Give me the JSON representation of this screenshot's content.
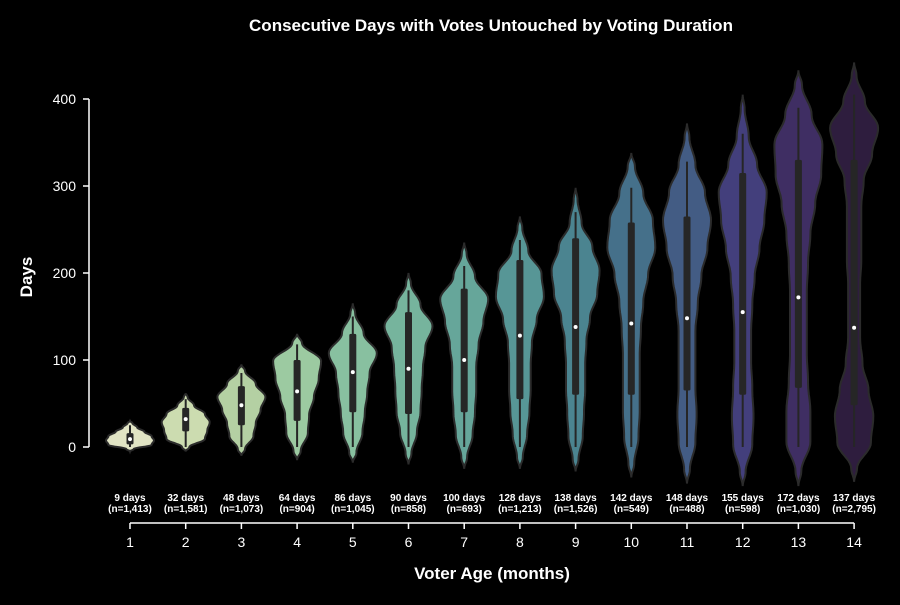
{
  "chart_data": {
    "type": "violin",
    "title": "Consecutive Days with Votes Untouched by Voting Duration",
    "xlabel": "Voter Age (months)",
    "ylabel": "Days",
    "ylim": [
      -45,
      445
    ],
    "yticks": [
      0,
      100,
      200,
      300,
      400
    ],
    "grid": false,
    "legend": "none",
    "categories": [
      "1",
      "2",
      "3",
      "4",
      "5",
      "6",
      "7",
      "8",
      "9",
      "10",
      "11",
      "12",
      "13",
      "14"
    ],
    "medians": [
      9,
      32,
      48,
      64,
      86,
      90,
      100,
      128,
      138,
      142,
      148,
      155,
      172,
      137
    ],
    "counts": [
      "1,413",
      "1,581",
      "1,073",
      "904",
      "1,045",
      "858",
      "693",
      "1,213",
      "1,526",
      "549",
      "488",
      "598",
      "1,030",
      "2,795"
    ],
    "annotations": [
      {
        "line1": "9 days",
        "line2": "(n=1,413)"
      },
      {
        "line1": "32 days",
        "line2": "(n=1,581)"
      },
      {
        "line1": "48 days",
        "line2": "(n=1,073)"
      },
      {
        "line1": "64 days",
        "line2": "(n=904)"
      },
      {
        "line1": "86 days",
        "line2": "(n=1,045)"
      },
      {
        "line1": "90 days",
        "line2": "(n=858)"
      },
      {
        "line1": "100 days",
        "line2": "(n=693)"
      },
      {
        "line1": "128 days",
        "line2": "(n=1,213)"
      },
      {
        "line1": "138 days",
        "line2": "(n=1,526)"
      },
      {
        "line1": "142 days",
        "line2": "(n=549)"
      },
      {
        "line1": "148 days",
        "line2": "(n=488)"
      },
      {
        "line1": "155 days",
        "line2": "(n=598)"
      },
      {
        "line1": "172 days",
        "line2": "(n=1,030)"
      },
      {
        "line1": "137 days",
        "line2": "(n=2,795)"
      }
    ],
    "box": {
      "q1": [
        3,
        18,
        25,
        30,
        40,
        38,
        40,
        55,
        60,
        60,
        65,
        60,
        68,
        48
      ],
      "q3": [
        16,
        45,
        70,
        100,
        130,
        155,
        182,
        215,
        240,
        258,
        265,
        315,
        330,
        330
      ],
      "whisker_low": [
        0,
        0,
        0,
        0,
        0,
        0,
        0,
        0,
        0,
        0,
        0,
        0,
        0,
        0
      ],
      "whisker_high": [
        25,
        55,
        85,
        118,
        150,
        180,
        208,
        238,
        270,
        298,
        328,
        360,
        390,
        405
      ]
    },
    "density_min": [
      -5,
      -5,
      -10,
      -15,
      -18,
      -20,
      -25,
      -25,
      -28,
      -35,
      -42,
      -45,
      -45,
      -40
    ],
    "density_max": [
      30,
      62,
      95,
      130,
      165,
      200,
      235,
      265,
      298,
      338,
      372,
      405,
      433,
      442
    ],
    "density_shape": [
      [
        0.15,
        0.9,
        1.0,
        0.9,
        0.6,
        0.3,
        0.1
      ],
      [
        0.15,
        0.8,
        0.9,
        1.0,
        0.8,
        0.35,
        0.08
      ],
      [
        0.15,
        0.5,
        0.6,
        0.8,
        1.0,
        0.6,
        0.15
      ],
      [
        0.15,
        0.45,
        0.5,
        0.7,
        0.9,
        1.0,
        0.2
      ],
      [
        0.15,
        0.4,
        0.5,
        0.6,
        0.7,
        1.0,
        0.45,
        0.1
      ],
      [
        0.12,
        0.35,
        0.5,
        0.55,
        0.6,
        0.7,
        1.0,
        0.5,
        0.1
      ],
      [
        0.12,
        0.35,
        0.45,
        0.5,
        0.5,
        0.6,
        0.8,
        1.0,
        0.45,
        0.1
      ],
      [
        0.12,
        0.3,
        0.4,
        0.45,
        0.45,
        0.5,
        0.7,
        1.0,
        0.9,
        0.35,
        0.1
      ],
      [
        0.12,
        0.3,
        0.35,
        0.4,
        0.4,
        0.45,
        0.6,
        0.9,
        1.0,
        0.7,
        0.25,
        0.08
      ],
      [
        0.12,
        0.3,
        0.35,
        0.35,
        0.35,
        0.4,
        0.5,
        0.7,
        1.0,
        0.9,
        0.5,
        0.15
      ],
      [
        0.12,
        0.35,
        0.4,
        0.35,
        0.35,
        0.35,
        0.45,
        0.6,
        0.85,
        1.0,
        0.75,
        0.35,
        0.1
      ],
      [
        0.12,
        0.4,
        0.45,
        0.4,
        0.35,
        0.35,
        0.4,
        0.5,
        0.7,
        0.9,
        1.0,
        0.6,
        0.25,
        0.08
      ],
      [
        0.12,
        0.5,
        0.5,
        0.4,
        0.35,
        0.35,
        0.35,
        0.4,
        0.5,
        0.7,
        0.95,
        1.0,
        0.55,
        0.15
      ],
      [
        0.12,
        0.7,
        0.8,
        0.6,
        0.35,
        0.25,
        0.25,
        0.25,
        0.3,
        0.3,
        0.3,
        0.4,
        0.75,
        1.0,
        0.45,
        0.1
      ]
    ],
    "colors": [
      "#e1e4c4",
      "#ccdcb0",
      "#b4d0a3",
      "#9ccaa1",
      "#88c0a0",
      "#76b49d",
      "#66a69a",
      "#579696",
      "#4b8490",
      "#45708a",
      "#435c84",
      "#433f7c",
      "#3f2e63",
      "#2e1d3e"
    ],
    "colors_note": "light sage green to dark purple palette, dark edges"
  }
}
